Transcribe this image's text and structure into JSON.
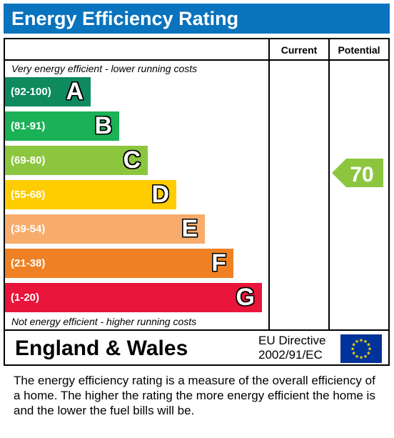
{
  "title": "Energy Efficiency Rating",
  "columns": {
    "current": "Current",
    "potential": "Potential"
  },
  "caption_top": "Very energy efficient - lower running costs",
  "caption_bottom": "Not energy efficient - higher running costs",
  "region": "England & Wales",
  "directive": {
    "line1": "EU Directive",
    "line2": "2002/91/EC"
  },
  "footer": "The energy efficiency rating is a measure of the overall efficiency of a home.  The higher the rating the more energy efficient the home is and the lower the fuel bills will be.",
  "colors": {
    "header": "#0a73bd",
    "eu_flag": "#003399",
    "eu_stars": "#ffdd00",
    "potential_arrow": "#8cc63f"
  },
  "chart_data": {
    "type": "bar",
    "categories": [
      "A",
      "B",
      "C",
      "D",
      "E",
      "F",
      "G"
    ],
    "bands": [
      {
        "letter": "A",
        "range": "(92-100)",
        "color": "#0f8a5f"
      },
      {
        "letter": "B",
        "range": "(81-91)",
        "color": "#1bb157"
      },
      {
        "letter": "C",
        "range": "(69-80)",
        "color": "#8cc63f"
      },
      {
        "letter": "D",
        "range": "(55-68)",
        "color": "#ffcc00"
      },
      {
        "letter": "E",
        "range": "(39-54)",
        "color": "#f7ac6b"
      },
      {
        "letter": "F",
        "range": "(21-38)",
        "color": "#ef8023"
      },
      {
        "letter": "G",
        "range": "(1-20)",
        "color": "#e9153b"
      }
    ],
    "current": null,
    "potential": {
      "value": 70,
      "band": "C"
    }
  }
}
